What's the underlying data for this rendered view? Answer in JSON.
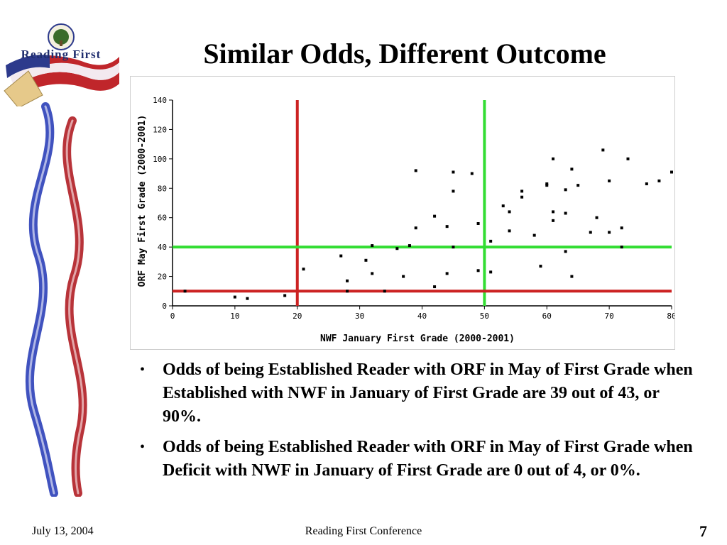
{
  "slide": {
    "title": "Similar Odds, Different Outcome",
    "logo_text": "Reading First",
    "footer": {
      "date": "July 13, 2004",
      "conference": "Reading First Conference",
      "page": "7"
    },
    "bullets": [
      "Odds of being Established Reader with ORF in May of First Grade when Established with NWF in January of First Grade are  39 out of 43, or 90%.",
      "Odds of being Established Reader with ORF in May of First Grade when Deficit with NWF in January of First Grade are 0 out of 4, or 0%."
    ],
    "bullet_symbol": "•"
  },
  "chart_data": {
    "type": "scatter",
    "xlabel": "NWF January First Grade (2000-2001)",
    "ylabel": "ORF May First Grade (2000-2001)",
    "xlim": [
      0,
      80
    ],
    "ylim": [
      0,
      140
    ],
    "xticks": [
      0,
      10,
      20,
      30,
      40,
      50,
      60,
      70,
      80
    ],
    "yticks": [
      0,
      20,
      40,
      60,
      80,
      100,
      120,
      140
    ],
    "grid": false,
    "reference_lines": [
      {
        "orientation": "vertical",
        "value": 20,
        "color": "#cc2222"
      },
      {
        "orientation": "vertical",
        "value": 50,
        "color": "#33dd33"
      },
      {
        "orientation": "horizontal",
        "value": 10,
        "color": "#cc2222"
      },
      {
        "orientation": "horizontal",
        "value": 40,
        "color": "#33dd33"
      }
    ],
    "points": [
      [
        2,
        10
      ],
      [
        10,
        6
      ],
      [
        12,
        5
      ],
      [
        18,
        7
      ],
      [
        21,
        25
      ],
      [
        27,
        34
      ],
      [
        28,
        17
      ],
      [
        28,
        10
      ],
      [
        31,
        31
      ],
      [
        32,
        41
      ],
      [
        32,
        22
      ],
      [
        34,
        10
      ],
      [
        36,
        39
      ],
      [
        37,
        20
      ],
      [
        38,
        41
      ],
      [
        39,
        92
      ],
      [
        39,
        53
      ],
      [
        42,
        61
      ],
      [
        42,
        13
      ],
      [
        44,
        54
      ],
      [
        44,
        22
      ],
      [
        45,
        91
      ],
      [
        45,
        78
      ],
      [
        45,
        40
      ],
      [
        48,
        90
      ],
      [
        49,
        56
      ],
      [
        49,
        24
      ],
      [
        51,
        44
      ],
      [
        51,
        23
      ],
      [
        53,
        68
      ],
      [
        54,
        64
      ],
      [
        54,
        51
      ],
      [
        56,
        78
      ],
      [
        56,
        74
      ],
      [
        58,
        48
      ],
      [
        59,
        27
      ],
      [
        60,
        82
      ],
      [
        60,
        83
      ],
      [
        61,
        100
      ],
      [
        61,
        64
      ],
      [
        61,
        58
      ],
      [
        63,
        79
      ],
      [
        63,
        63
      ],
      [
        63,
        37
      ],
      [
        64,
        93
      ],
      [
        64,
        20
      ],
      [
        65,
        82
      ],
      [
        67,
        50
      ],
      [
        68,
        60
      ],
      [
        69,
        106
      ],
      [
        70,
        85
      ],
      [
        70,
        50
      ],
      [
        72,
        53
      ],
      [
        72,
        40
      ],
      [
        73,
        100
      ],
      [
        76,
        83
      ],
      [
        78,
        85
      ],
      [
        80,
        91
      ]
    ]
  }
}
